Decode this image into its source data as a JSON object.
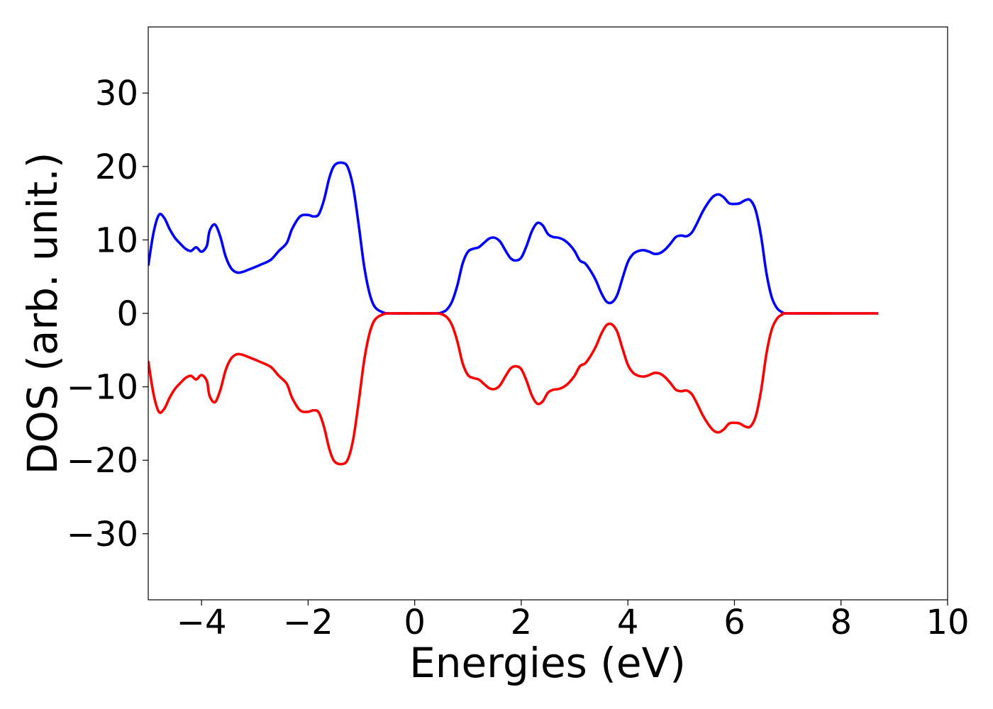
{
  "chart_data": {
    "type": "line",
    "title": "",
    "xlabel": "Energies (eV)",
    "ylabel": "DOS (arb. unit.)",
    "xlim": [
      -5,
      10
    ],
    "ylim": [
      -39,
      39
    ],
    "xticks": [
      -4,
      -2,
      0,
      2,
      4,
      6,
      8,
      10
    ],
    "yticks": [
      -30,
      -20,
      -10,
      0,
      10,
      20,
      30
    ],
    "xtick_labels": [
      "−4",
      "−2",
      "0",
      "2",
      "4",
      "6",
      "8",
      "10"
    ],
    "ytick_labels": [
      "−30",
      "−20",
      "−10",
      "0",
      "10",
      "20",
      "30"
    ],
    "grid": false,
    "legend": "none",
    "series": [
      {
        "color": "#0000ff",
        "points": [
          [
            -5.0,
            6.5
          ],
          [
            -4.9,
            11.0
          ],
          [
            -4.8,
            13.4
          ],
          [
            -4.7,
            13.0
          ],
          [
            -4.6,
            11.5
          ],
          [
            -4.5,
            10.3
          ],
          [
            -4.4,
            9.5
          ],
          [
            -4.3,
            8.8
          ],
          [
            -4.2,
            8.5
          ],
          [
            -4.1,
            9.0
          ],
          [
            -4.0,
            8.4
          ],
          [
            -3.9,
            9.2
          ],
          [
            -3.85,
            11.2
          ],
          [
            -3.75,
            12.1
          ],
          [
            -3.65,
            10.5
          ],
          [
            -3.55,
            7.8
          ],
          [
            -3.45,
            6.2
          ],
          [
            -3.35,
            5.6
          ],
          [
            -3.25,
            5.6
          ],
          [
            -3.1,
            6.0
          ],
          [
            -2.9,
            6.6
          ],
          [
            -2.7,
            7.3
          ],
          [
            -2.55,
            8.5
          ],
          [
            -2.4,
            9.6
          ],
          [
            -2.3,
            11.5
          ],
          [
            -2.15,
            13.2
          ],
          [
            -2.0,
            13.4
          ],
          [
            -1.9,
            13.2
          ],
          [
            -1.8,
            13.5
          ],
          [
            -1.7,
            15.5
          ],
          [
            -1.6,
            18.5
          ],
          [
            -1.5,
            20.2
          ],
          [
            -1.35,
            20.5
          ],
          [
            -1.25,
            19.8
          ],
          [
            -1.15,
            17.0
          ],
          [
            -1.05,
            12.0
          ],
          [
            -0.95,
            6.5
          ],
          [
            -0.85,
            2.8
          ],
          [
            -0.75,
            0.9
          ],
          [
            -0.6,
            0.15
          ],
          [
            -0.45,
            0.0
          ],
          [
            0.0,
            0.0
          ],
          [
            0.4,
            0.0
          ],
          [
            0.5,
            0.1
          ],
          [
            0.6,
            0.5
          ],
          [
            0.7,
            1.6
          ],
          [
            0.8,
            3.8
          ],
          [
            0.9,
            6.8
          ],
          [
            1.0,
            8.4
          ],
          [
            1.1,
            8.8
          ],
          [
            1.2,
            9.0
          ],
          [
            1.3,
            9.6
          ],
          [
            1.4,
            10.2
          ],
          [
            1.5,
            10.3
          ],
          [
            1.6,
            9.8
          ],
          [
            1.7,
            8.6
          ],
          [
            1.8,
            7.5
          ],
          [
            1.9,
            7.2
          ],
          [
            2.0,
            7.6
          ],
          [
            2.1,
            9.2
          ],
          [
            2.2,
            11.2
          ],
          [
            2.3,
            12.3
          ],
          [
            2.4,
            12.0
          ],
          [
            2.5,
            10.8
          ],
          [
            2.6,
            10.4
          ],
          [
            2.7,
            10.3
          ],
          [
            2.8,
            10.0
          ],
          [
            2.9,
            9.4
          ],
          [
            3.0,
            8.5
          ],
          [
            3.1,
            7.2
          ],
          [
            3.2,
            6.8
          ],
          [
            3.3,
            5.8
          ],
          [
            3.4,
            4.5
          ],
          [
            3.5,
            2.8
          ],
          [
            3.6,
            1.6
          ],
          [
            3.7,
            1.5
          ],
          [
            3.8,
            2.5
          ],
          [
            3.9,
            4.8
          ],
          [
            4.0,
            7.0
          ],
          [
            4.1,
            8.1
          ],
          [
            4.2,
            8.5
          ],
          [
            4.3,
            8.6
          ],
          [
            4.4,
            8.4
          ],
          [
            4.5,
            8.1
          ],
          [
            4.6,
            8.2
          ],
          [
            4.7,
            8.7
          ],
          [
            4.8,
            9.5
          ],
          [
            4.9,
            10.4
          ],
          [
            5.0,
            10.6
          ],
          [
            5.1,
            10.5
          ],
          [
            5.2,
            11.0
          ],
          [
            5.3,
            12.3
          ],
          [
            5.4,
            13.8
          ],
          [
            5.5,
            15.0
          ],
          [
            5.6,
            15.9
          ],
          [
            5.7,
            16.2
          ],
          [
            5.8,
            15.8
          ],
          [
            5.9,
            15.0
          ],
          [
            6.0,
            14.9
          ],
          [
            6.1,
            15.0
          ],
          [
            6.2,
            15.4
          ],
          [
            6.3,
            15.4
          ],
          [
            6.4,
            14.0
          ],
          [
            6.5,
            10.5
          ],
          [
            6.6,
            5.5
          ],
          [
            6.7,
            2.2
          ],
          [
            6.8,
            0.7
          ],
          [
            6.9,
            0.15
          ],
          [
            7.0,
            0.0
          ],
          [
            8.0,
            0.0
          ],
          [
            8.7,
            0.0
          ]
        ]
      },
      {
        "color": "#ff0000",
        "points": [
          [
            -5.0,
            -6.5
          ],
          [
            -4.9,
            -11.0
          ],
          [
            -4.8,
            -13.4
          ],
          [
            -4.7,
            -13.0
          ],
          [
            -4.6,
            -11.5
          ],
          [
            -4.5,
            -10.3
          ],
          [
            -4.4,
            -9.5
          ],
          [
            -4.3,
            -8.8
          ],
          [
            -4.2,
            -8.5
          ],
          [
            -4.1,
            -9.0
          ],
          [
            -4.0,
            -8.4
          ],
          [
            -3.9,
            -9.2
          ],
          [
            -3.85,
            -11.2
          ],
          [
            -3.75,
            -12.1
          ],
          [
            -3.65,
            -10.5
          ],
          [
            -3.55,
            -7.8
          ],
          [
            -3.45,
            -6.2
          ],
          [
            -3.35,
            -5.6
          ],
          [
            -3.25,
            -5.6
          ],
          [
            -3.1,
            -6.0
          ],
          [
            -2.9,
            -6.6
          ],
          [
            -2.7,
            -7.3
          ],
          [
            -2.55,
            -8.5
          ],
          [
            -2.4,
            -9.6
          ],
          [
            -2.3,
            -11.5
          ],
          [
            -2.15,
            -13.2
          ],
          [
            -2.0,
            -13.4
          ],
          [
            -1.9,
            -13.2
          ],
          [
            -1.8,
            -13.5
          ],
          [
            -1.7,
            -15.5
          ],
          [
            -1.6,
            -18.5
          ],
          [
            -1.5,
            -20.2
          ],
          [
            -1.35,
            -20.5
          ],
          [
            -1.25,
            -19.8
          ],
          [
            -1.15,
            -17.0
          ],
          [
            -1.05,
            -12.0
          ],
          [
            -0.95,
            -6.5
          ],
          [
            -0.85,
            -2.8
          ],
          [
            -0.75,
            -0.9
          ],
          [
            -0.6,
            -0.15
          ],
          [
            -0.45,
            0.0
          ],
          [
            0.0,
            0.0
          ],
          [
            0.4,
            0.0
          ],
          [
            0.5,
            -0.1
          ],
          [
            0.6,
            -0.5
          ],
          [
            0.7,
            -1.6
          ],
          [
            0.8,
            -3.8
          ],
          [
            0.9,
            -6.8
          ],
          [
            1.0,
            -8.4
          ],
          [
            1.1,
            -8.8
          ],
          [
            1.2,
            -9.0
          ],
          [
            1.3,
            -9.6
          ],
          [
            1.4,
            -10.2
          ],
          [
            1.5,
            -10.3
          ],
          [
            1.6,
            -9.8
          ],
          [
            1.7,
            -8.6
          ],
          [
            1.8,
            -7.5
          ],
          [
            1.9,
            -7.2
          ],
          [
            2.0,
            -7.6
          ],
          [
            2.1,
            -9.2
          ],
          [
            2.2,
            -11.2
          ],
          [
            2.3,
            -12.3
          ],
          [
            2.4,
            -12.0
          ],
          [
            2.5,
            -10.8
          ],
          [
            2.6,
            -10.4
          ],
          [
            2.7,
            -10.3
          ],
          [
            2.8,
            -10.0
          ],
          [
            2.9,
            -9.4
          ],
          [
            3.0,
            -8.5
          ],
          [
            3.1,
            -7.2
          ],
          [
            3.2,
            -6.8
          ],
          [
            3.3,
            -5.8
          ],
          [
            3.4,
            -4.5
          ],
          [
            3.5,
            -2.8
          ],
          [
            3.6,
            -1.6
          ],
          [
            3.7,
            -1.5
          ],
          [
            3.8,
            -2.5
          ],
          [
            3.9,
            -4.8
          ],
          [
            4.0,
            -7.0
          ],
          [
            4.1,
            -8.1
          ],
          [
            4.2,
            -8.5
          ],
          [
            4.3,
            -8.6
          ],
          [
            4.4,
            -8.4
          ],
          [
            4.5,
            -8.1
          ],
          [
            4.6,
            -8.2
          ],
          [
            4.7,
            -8.7
          ],
          [
            4.8,
            -9.5
          ],
          [
            4.9,
            -10.4
          ],
          [
            5.0,
            -10.6
          ],
          [
            5.1,
            -10.5
          ],
          [
            5.2,
            -11.0
          ],
          [
            5.3,
            -12.3
          ],
          [
            5.4,
            -13.8
          ],
          [
            5.5,
            -15.0
          ],
          [
            5.6,
            -15.9
          ],
          [
            5.7,
            -16.2
          ],
          [
            5.8,
            -15.8
          ],
          [
            5.9,
            -15.0
          ],
          [
            6.0,
            -14.9
          ],
          [
            6.1,
            -15.0
          ],
          [
            6.2,
            -15.4
          ],
          [
            6.3,
            -15.4
          ],
          [
            6.4,
            -14.0
          ],
          [
            6.5,
            -10.5
          ],
          [
            6.6,
            -5.5
          ],
          [
            6.7,
            -2.2
          ],
          [
            6.8,
            -0.7
          ],
          [
            6.9,
            -0.15
          ],
          [
            7.0,
            0.0
          ],
          [
            8.0,
            0.0
          ],
          [
            8.7,
            0.0
          ]
        ]
      }
    ]
  }
}
